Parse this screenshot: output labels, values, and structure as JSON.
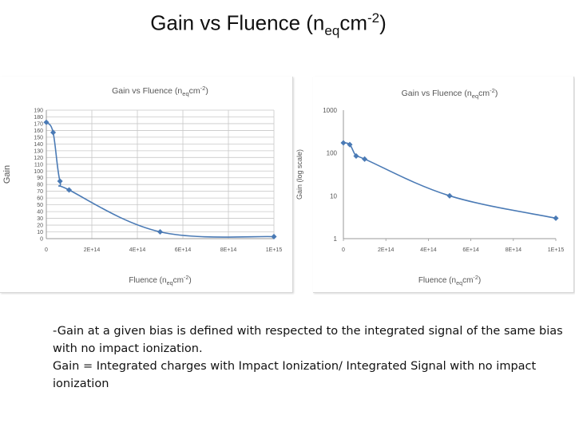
{
  "slide": {
    "title_main": "Gain vs Fluence (n",
    "title_sub": "eq",
    "title_mid": "cm",
    "title_sup": "-2",
    "title_end": ")"
  },
  "description": {
    "line1": "-Gain at a given bias is defined with respected to the integrated signal of the same bias with no impact ionization.",
    "line2": " Gain = Integrated charges with Impact Ionization/ Integrated Signal with no impact ionization"
  },
  "colors": {
    "series": "#4a7ab5",
    "grid": "#c8c8c8",
    "axis": "#9a9a9a",
    "text": "#555555"
  },
  "chart_data": [
    {
      "type": "line",
      "title": "Gain vs Fluence (neqcm-2)",
      "xlabel": "Fluence (neqcm-2)",
      "ylabel": "Gain",
      "xlim": [
        0,
        1000000000000000.0
      ],
      "ylim": [
        0,
        190
      ],
      "x_ticks": [
        0,
        200000000000000.0,
        400000000000000.0,
        600000000000000.0,
        800000000000000.0,
        1000000000000000.0
      ],
      "x_tick_labels": [
        "0",
        "2E+14",
        "4E+14",
        "6E+14",
        "8E+14",
        "1E+15"
      ],
      "y_tick_labels": [
        "190",
        "180",
        "170",
        "160",
        "150",
        "140",
        "130",
        "120",
        "110",
        "100",
        "90",
        "80",
        "70",
        "60",
        "50",
        "40",
        "30",
        "20",
        "10",
        "0"
      ],
      "grid": true,
      "legend": "none",
      "series": [
        {
          "x": [
            0,
            30000000000000.0,
            60000000000000.0,
            100000000000000.0,
            500000000000000.0,
            1000000000000000.0
          ],
          "y": [
            172,
            157,
            85,
            72,
            10,
            3
          ]
        }
      ]
    },
    {
      "type": "line",
      "title": "Gain vs Fluence (neqcm-2)",
      "xlabel": "Fluence (neqcm-2)",
      "ylabel": "Gain (log scale)",
      "xlim": [
        0,
        1000000000000000.0
      ],
      "ylim": [
        1,
        1000
      ],
      "log_y": true,
      "x_ticks": [
        0,
        200000000000000.0,
        400000000000000.0,
        600000000000000.0,
        800000000000000.0,
        1000000000000000.0
      ],
      "x_tick_labels": [
        "0",
        "2E+14",
        "4E+14",
        "6E+14",
        "8E+14",
        "1E+15"
      ],
      "y_ticks": [
        1,
        10,
        100,
        1000
      ],
      "y_tick_labels": [
        "1",
        "10",
        "100",
        "1000"
      ],
      "grid": false,
      "legend": "none",
      "series": [
        {
          "x": [
            0,
            30000000000000.0,
            60000000000000.0,
            100000000000000.0,
            500000000000000.0,
            1000000000000000.0
          ],
          "y": [
            172,
            157,
            85,
            72,
            10,
            3
          ]
        }
      ]
    }
  ]
}
